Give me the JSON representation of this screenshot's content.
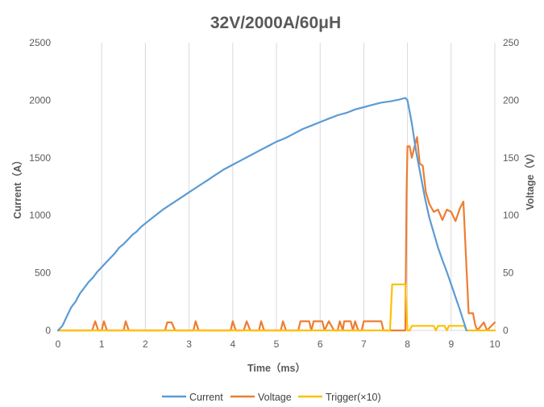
{
  "chart_data": {
    "type": "line",
    "title": "32V/2000A/60μH",
    "xlabel": "Time（ms）",
    "ylabel_left": "Current（A）",
    "ylabel_right": "Voltage（V）",
    "xlim": [
      0,
      10
    ],
    "ylim_left": [
      0,
      2500
    ],
    "ylim_right": [
      0,
      250
    ],
    "x_ticks": [
      "0",
      "1",
      "2",
      "3",
      "4",
      "5",
      "6",
      "7",
      "8",
      "9",
      "10"
    ],
    "y_left_ticks": [
      "0",
      "500",
      "1000",
      "1500",
      "2000",
      "2500"
    ],
    "y_right_ticks": [
      "0",
      "50",
      "100",
      "150",
      "200",
      "250"
    ],
    "grid": "vertical",
    "legend_position": "bottom",
    "colors": {
      "current": "#5B9BD5",
      "voltage": "#ED7D31",
      "trigger": "#FFC000"
    },
    "series": [
      {
        "name": "Current",
        "key": "current",
        "axis": "left",
        "points": [
          [
            0,
            0
          ],
          [
            0.1,
            40
          ],
          [
            0.2,
            120
          ],
          [
            0.3,
            200
          ],
          [
            0.4,
            250
          ],
          [
            0.5,
            320
          ],
          [
            0.6,
            370
          ],
          [
            0.7,
            420
          ],
          [
            0.8,
            460
          ],
          [
            0.9,
            510
          ],
          [
            1.0,
            550
          ],
          [
            1.1,
            590
          ],
          [
            1.2,
            630
          ],
          [
            1.3,
            670
          ],
          [
            1.4,
            720
          ],
          [
            1.5,
            750
          ],
          [
            1.6,
            790
          ],
          [
            1.7,
            830
          ],
          [
            1.8,
            860
          ],
          [
            1.9,
            900
          ],
          [
            2.0,
            930
          ],
          [
            2.2,
            990
          ],
          [
            2.4,
            1050
          ],
          [
            2.6,
            1100
          ],
          [
            2.8,
            1150
          ],
          [
            3.0,
            1200
          ],
          [
            3.2,
            1250
          ],
          [
            3.4,
            1300
          ],
          [
            3.6,
            1350
          ],
          [
            3.8,
            1400
          ],
          [
            4.0,
            1440
          ],
          [
            4.2,
            1480
          ],
          [
            4.4,
            1520
          ],
          [
            4.6,
            1560
          ],
          [
            4.8,
            1600
          ],
          [
            5.0,
            1640
          ],
          [
            5.2,
            1670
          ],
          [
            5.4,
            1710
          ],
          [
            5.6,
            1750
          ],
          [
            5.8,
            1780
          ],
          [
            6.0,
            1810
          ],
          [
            6.2,
            1840
          ],
          [
            6.4,
            1870
          ],
          [
            6.6,
            1890
          ],
          [
            6.8,
            1920
          ],
          [
            7.0,
            1940
          ],
          [
            7.2,
            1960
          ],
          [
            7.4,
            1980
          ],
          [
            7.6,
            1990
          ],
          [
            7.8,
            2005
          ],
          [
            7.95,
            2020
          ],
          [
            8.0,
            2000
          ],
          [
            8.1,
            1800
          ],
          [
            8.2,
            1550
          ],
          [
            8.3,
            1350
          ],
          [
            8.4,
            1150
          ],
          [
            8.5,
            980
          ],
          [
            8.6,
            850
          ],
          [
            8.7,
            720
          ],
          [
            8.8,
            610
          ],
          [
            8.9,
            510
          ],
          [
            9.0,
            400
          ],
          [
            9.1,
            290
          ],
          [
            9.2,
            180
          ],
          [
            9.3,
            60
          ],
          [
            9.35,
            0
          ]
        ]
      },
      {
        "name": "Voltage",
        "key": "voltage",
        "axis": "right",
        "points": [
          [
            0,
            0
          ],
          [
            0.78,
            0
          ],
          [
            0.85,
            8
          ],
          [
            0.92,
            0
          ],
          [
            1.0,
            0
          ],
          [
            1.05,
            8
          ],
          [
            1.12,
            0
          ],
          [
            1.5,
            0
          ],
          [
            1.55,
            8
          ],
          [
            1.62,
            0
          ],
          [
            2.45,
            0
          ],
          [
            2.5,
            7
          ],
          [
            2.6,
            7
          ],
          [
            2.68,
            0
          ],
          [
            3.1,
            0
          ],
          [
            3.15,
            8
          ],
          [
            3.22,
            0
          ],
          [
            3.95,
            0
          ],
          [
            4.0,
            8
          ],
          [
            4.07,
            0
          ],
          [
            4.25,
            0
          ],
          [
            4.32,
            8
          ],
          [
            4.4,
            0
          ],
          [
            4.6,
            0
          ],
          [
            4.65,
            8
          ],
          [
            4.72,
            0
          ],
          [
            5.1,
            0
          ],
          [
            5.15,
            8
          ],
          [
            5.22,
            0
          ],
          [
            5.5,
            0
          ],
          [
            5.55,
            8
          ],
          [
            5.75,
            8
          ],
          [
            5.8,
            0
          ],
          [
            5.85,
            8
          ],
          [
            6.05,
            8
          ],
          [
            6.1,
            0
          ],
          [
            6.2,
            8
          ],
          [
            6.32,
            0
          ],
          [
            6.4,
            0
          ],
          [
            6.45,
            8
          ],
          [
            6.52,
            0
          ],
          [
            6.55,
            8
          ],
          [
            6.7,
            8
          ],
          [
            6.75,
            0
          ],
          [
            6.8,
            8
          ],
          [
            6.87,
            0
          ],
          [
            6.95,
            0
          ],
          [
            7.0,
            8
          ],
          [
            7.4,
            8
          ],
          [
            7.45,
            0
          ],
          [
            7.95,
            0
          ],
          [
            7.98,
            120
          ],
          [
            8.0,
            160
          ],
          [
            8.05,
            160
          ],
          [
            8.1,
            150
          ],
          [
            8.15,
            158
          ],
          [
            8.22,
            168
          ],
          [
            8.28,
            145
          ],
          [
            8.35,
            143
          ],
          [
            8.42,
            120
          ],
          [
            8.5,
            110
          ],
          [
            8.6,
            103
          ],
          [
            8.7,
            105
          ],
          [
            8.8,
            96
          ],
          [
            8.9,
            105
          ],
          [
            9.0,
            103
          ],
          [
            9.1,
            95
          ],
          [
            9.2,
            106
          ],
          [
            9.28,
            112
          ],
          [
            9.32,
            80
          ],
          [
            9.4,
            15
          ],
          [
            9.5,
            15
          ],
          [
            9.55,
            5
          ],
          [
            9.6,
            0
          ],
          [
            9.75,
            7
          ],
          [
            9.82,
            0
          ],
          [
            10.0,
            7
          ]
        ]
      },
      {
        "name": "Trigger(×10)",
        "key": "trigger",
        "axis": "right",
        "points": [
          [
            0,
            0
          ],
          [
            7.6,
            0
          ],
          [
            7.65,
            40
          ],
          [
            7.95,
            40
          ],
          [
            8.0,
            0
          ],
          [
            8.05,
            0
          ],
          [
            8.1,
            4
          ],
          [
            8.6,
            4
          ],
          [
            8.65,
            0
          ],
          [
            8.7,
            4
          ],
          [
            8.85,
            4
          ],
          [
            8.9,
            0
          ],
          [
            8.95,
            4
          ],
          [
            9.3,
            4
          ],
          [
            9.35,
            0
          ],
          [
            10.0,
            0
          ]
        ]
      }
    ]
  }
}
